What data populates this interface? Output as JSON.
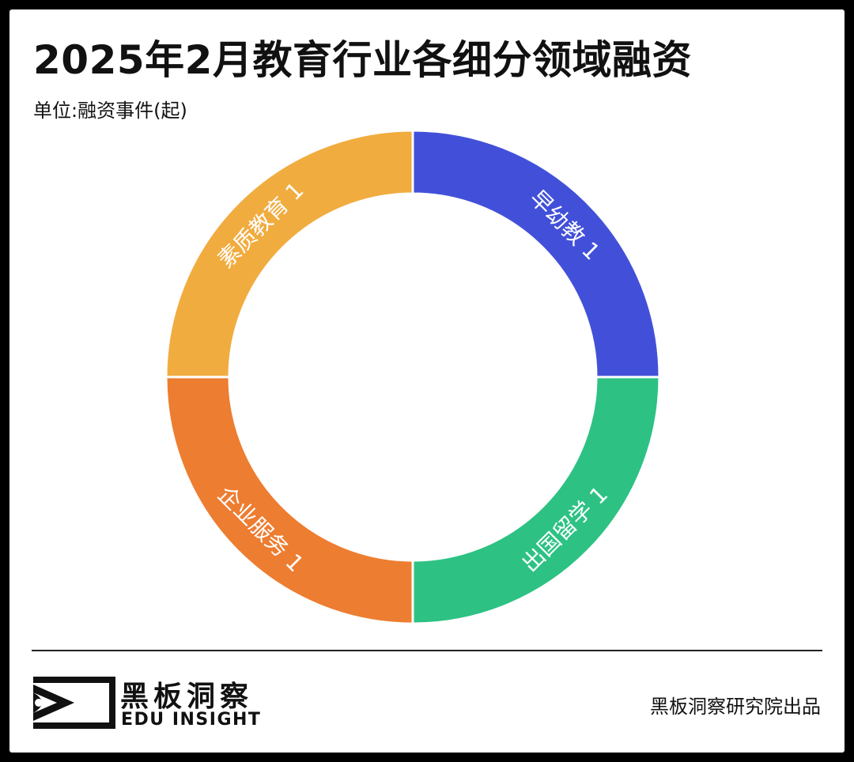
{
  "header": {
    "title": "2025年2月教育行业各细分领域融资",
    "unit": "单位:融资事件(起)"
  },
  "chart_data": {
    "type": "pie",
    "donut": true,
    "categories": [
      "早幼教",
      "出国留学",
      "企业服务",
      "素质教育"
    ],
    "values": [
      1,
      1,
      1,
      1
    ],
    "colors": [
      "#4250d9",
      "#2dc284",
      "#ed7d31",
      "#f1ac3f"
    ],
    "legend": "none"
  },
  "footer": {
    "brand_cn": "黑板洞察",
    "brand_en": "EDU INSIGHT",
    "credit": "黑板洞察研究院出品"
  }
}
